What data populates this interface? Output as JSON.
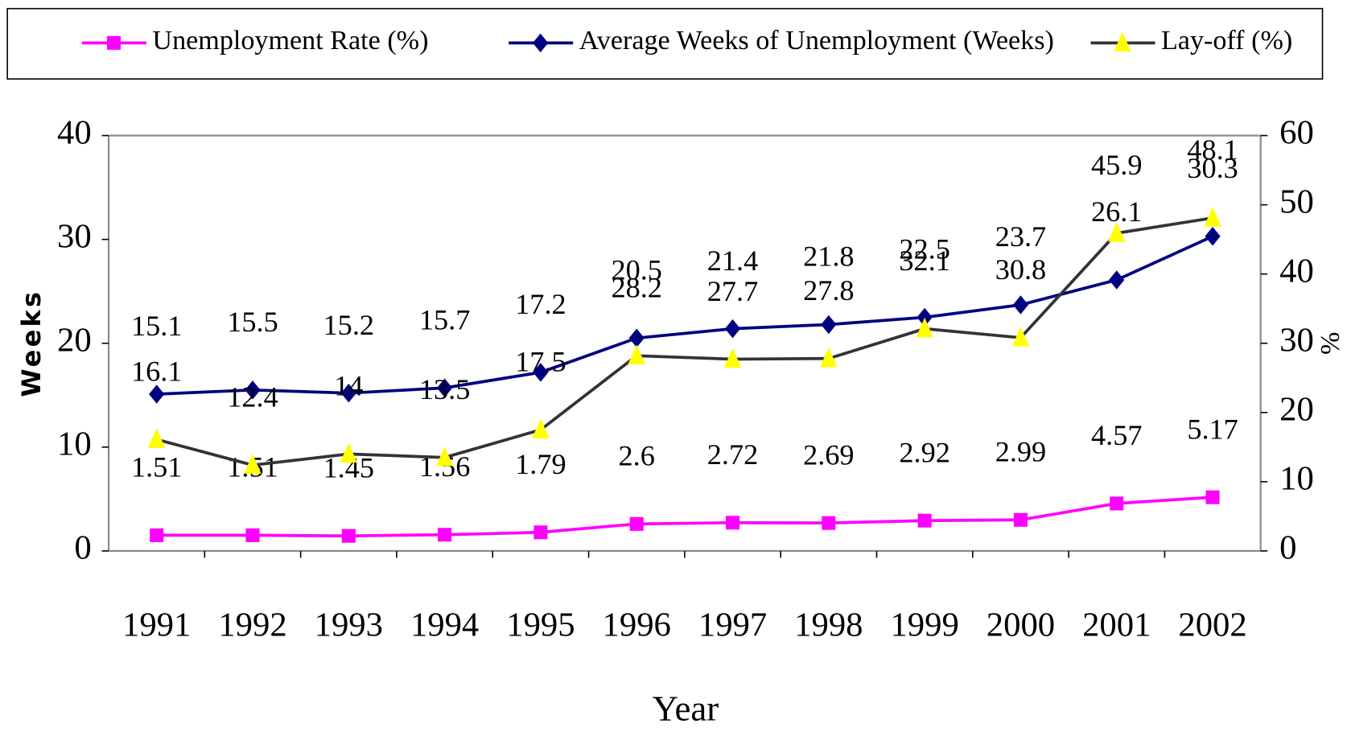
{
  "chart_data": {
    "type": "line",
    "xlabel": "Year",
    "ylabel": "Weeks",
    "y2label": "%",
    "categories": [
      "1991",
      "1992",
      "1993",
      "1994",
      "1995",
      "1996",
      "1997",
      "1998",
      "1999",
      "2000",
      "2001",
      "2002"
    ],
    "ylim": [
      0,
      40
    ],
    "yticks": [
      0,
      10,
      20,
      30,
      40
    ],
    "y2lim": [
      0,
      60
    ],
    "y2ticks": [
      0,
      10,
      20,
      30,
      40,
      50,
      60
    ],
    "grid": false,
    "legend": "top",
    "series": [
      {
        "name": "Unemployment Rate (%)",
        "color": "#ff00ff",
        "marker": "square",
        "marker_color": "#ff00ff",
        "values": [
          1.51,
          1.51,
          1.45,
          1.56,
          1.79,
          2.6,
          2.72,
          2.69,
          2.92,
          2.99,
          4.57,
          5.17
        ]
      },
      {
        "name": "Average Weeks of Unemployment (Weeks)",
        "color": "#000080",
        "marker": "diamond",
        "marker_color": "#000080",
        "values": [
          15.1,
          15.5,
          15.2,
          15.7,
          17.2,
          20.5,
          21.4,
          21.8,
          22.5,
          23.7,
          26.1,
          30.3
        ]
      },
      {
        "name": "Lay-off (%)",
        "color": "#333333",
        "marker": "triangle",
        "marker_color": "#ffff00",
        "axis": "y2",
        "values": [
          16.1,
          12.4,
          14,
          13.5,
          17.5,
          28.2,
          27.7,
          27.8,
          32.1,
          30.8,
          45.9,
          48.1
        ]
      }
    ]
  }
}
